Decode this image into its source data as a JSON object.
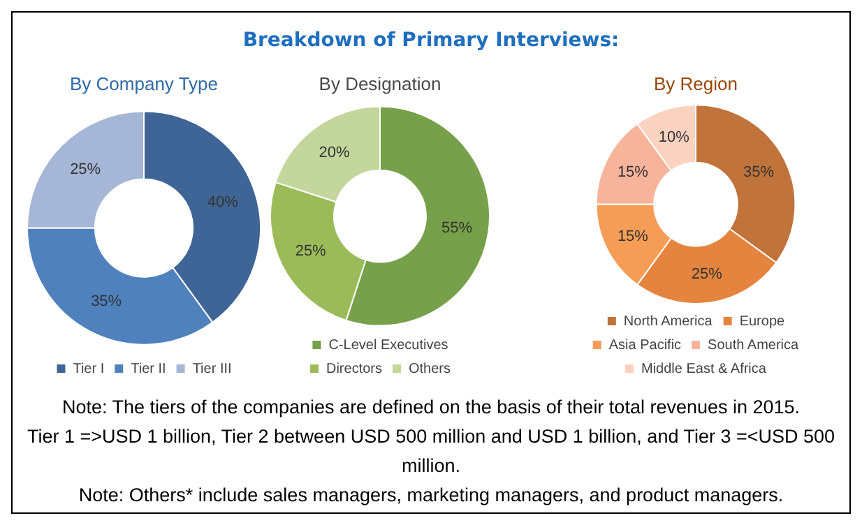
{
  "chart_data": [
    {
      "type": "donut",
      "title": "By Company Type",
      "categories": [
        "Tier I",
        "Tier II",
        "Tier III"
      ],
      "values": [
        40,
        35,
        25
      ],
      "colors": [
        "#3f6596",
        "#4f81bd",
        "#a5b6d6"
      ],
      "value_labels": [
        "40%",
        "35%",
        "25%"
      ],
      "legend": "bottom"
    },
    {
      "type": "donut",
      "title": "By Designation",
      "categories": [
        "C-Level Executives",
        "Directors",
        "Others"
      ],
      "values": [
        55,
        25,
        20
      ],
      "colors": [
        "#77a04a",
        "#9bbb59",
        "#c3d69b"
      ],
      "value_labels": [
        "55%",
        "25%",
        "20%"
      ],
      "legend": "bottom"
    },
    {
      "type": "donut",
      "title": "By Region",
      "categories": [
        "North America",
        "Europe",
        "Asia Pacific",
        "South America",
        "Middle East & Africa"
      ],
      "values": [
        35,
        25,
        15,
        15,
        10
      ],
      "colors": [
        "#c0733a",
        "#e5843f",
        "#f59d56",
        "#f7b49a",
        "#fad3c0"
      ],
      "value_labels": [
        "35%",
        "25%",
        "15%",
        "15%",
        "10%"
      ],
      "legend": "bottom"
    },
    {
      "type": "other",
      "title": "Breakdown of Primary Interviews:",
      "annotations": [
        "Note: The tiers of the companies are defined on the basis of their total revenues in 2015.",
        "Tier 1 =>USD 1 billion, Tier 2 between USD 500 million and USD 1 billion, and Tier 3 =<USD 500 million.",
        "Note: Others* include sales managers, marketing managers, and product managers."
      ]
    }
  ]
}
